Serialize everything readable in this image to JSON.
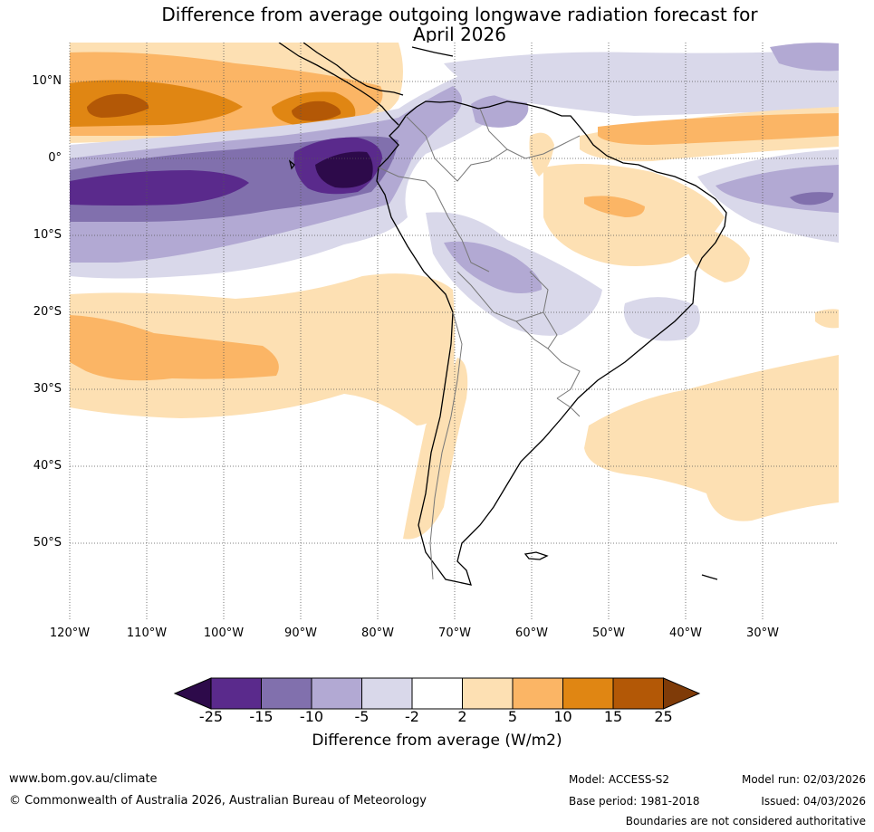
{
  "title": {
    "line1": "Difference from average outgoing longwave radiation forecast for",
    "line2": "April 2026"
  },
  "axes": {
    "lat_labels": [
      "10°N",
      "0°",
      "10°S",
      "20°S",
      "30°S",
      "40°S",
      "50°S"
    ],
    "lon_labels": [
      "120°W",
      "110°W",
      "100°W",
      "90°W",
      "80°W",
      "70°W",
      "60°W",
      "50°W",
      "40°W",
      "30°W"
    ]
  },
  "colorbar": {
    "title": "Difference from average (W/m2)",
    "ticks": [
      "-25",
      "-15",
      "-10",
      "-5",
      "-2",
      "2",
      "5",
      "10",
      "15",
      "25"
    ],
    "colors": {
      "c_below_25": "#2d0a4a",
      "c_25_15": "#5a2a8c",
      "c_15_10": "#8170ad",
      "c_10_5": "#b2a9d3",
      "c_5_2": "#d9d8ea",
      "c_neutral": "#ffffff",
      "c_2_5": "#fde0b3",
      "c_5_10": "#fbb565",
      "c_10_15": "#e08613",
      "c_15_25": "#b35806",
      "c_above_25": "#7f3b08"
    }
  },
  "footer": {
    "website": "www.bom.gov.au/climate",
    "copyright": "© Commonwealth of Australia 2026, Australian Bureau of Meteorology",
    "model": "Model: ACCESS-S2",
    "base_period": "Base period: 1981-2018",
    "model_run": "Model run: 02/03/2026",
    "issued": "Issued: 04/03/2026",
    "disclaimer": "Boundaries are not considered authoritative"
  }
}
